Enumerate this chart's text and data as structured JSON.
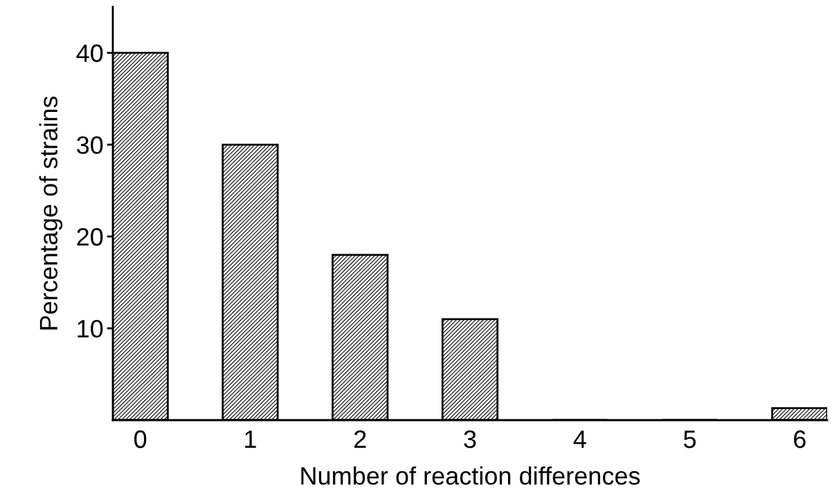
{
  "chart_data": {
    "type": "bar",
    "xlabel": "Number of reaction differences",
    "ylabel": "Percentage of strains",
    "categories": [
      "0",
      "1",
      "2",
      "3",
      "4",
      "5",
      "6"
    ],
    "values": [
      40,
      30,
      18,
      11,
      0,
      0,
      1.3
    ],
    "color": "#000000",
    "ylim": [
      0,
      45
    ],
    "yticks": [
      10,
      20,
      30,
      40
    ],
    "grid": false,
    "legend": false
  }
}
